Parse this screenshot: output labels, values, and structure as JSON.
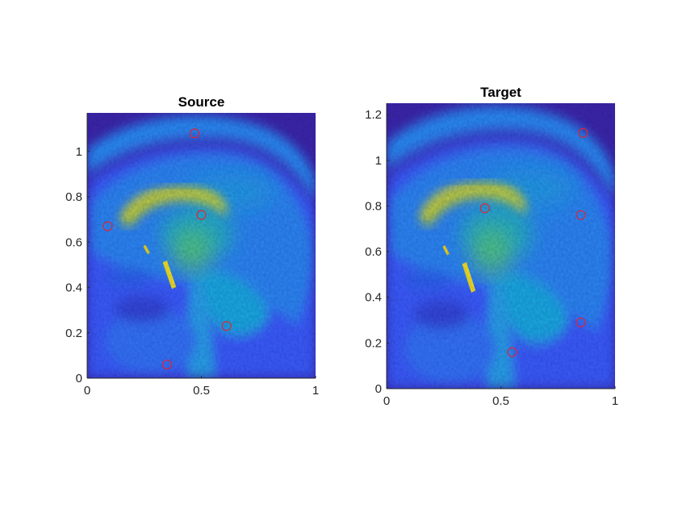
{
  "chart_data": [
    {
      "type": "scatter",
      "title": "Source",
      "background": "sagittal MRI slice of a head (parula colormap)",
      "xlim": [
        0,
        1
      ],
      "ylim": [
        0,
        1.17
      ],
      "xticks": [
        0,
        0.5,
        1
      ],
      "yticks": [
        0,
        0.2,
        0.4,
        0.6,
        0.8,
        1
      ],
      "xtick_labels": [
        "0",
        "0.5",
        "1"
      ],
      "ytick_labels": [
        "0",
        "0.2",
        "0.4",
        "0.6",
        "0.8",
        "1"
      ],
      "marker": "circle",
      "marker_color": "#e8202a",
      "series": [
        {
          "x": [
            0.09,
            0.47,
            0.5,
            0.61,
            0.35
          ],
          "y": [
            0.67,
            1.08,
            0.72,
            0.23,
            0.06
          ]
        }
      ]
    },
    {
      "type": "scatter",
      "title": "Target",
      "background": "sagittal MRI slice of a head (parula colormap)",
      "xlim": [
        0,
        1
      ],
      "ylim": [
        0,
        1.25
      ],
      "xticks": [
        0,
        0.5,
        1
      ],
      "yticks": [
        0,
        0.2,
        0.4,
        0.6,
        0.8,
        1,
        1.2
      ],
      "xtick_labels": [
        "0",
        "0.5",
        "1"
      ],
      "ytick_labels": [
        "0",
        "0.2",
        "0.4",
        "0.6",
        "0.8",
        "1",
        "1.2"
      ],
      "marker": "circle",
      "marker_color": "#e8202a",
      "series": [
        {
          "x": [
            0.43,
            0.86,
            0.85,
            0.85,
            0.55
          ],
          "y": [
            0.79,
            1.12,
            0.76,
            0.29,
            0.16
          ]
        }
      ]
    }
  ],
  "colors": {
    "deep_blue": "#3e26a8",
    "blue": "#3a5bf5",
    "azure": "#2b8ef0",
    "cyan": "#17b0d6",
    "teal": "#1fbfb0",
    "green": "#62cc6e",
    "yellow_green": "#b8cc38",
    "yellow": "#f5e12a"
  }
}
